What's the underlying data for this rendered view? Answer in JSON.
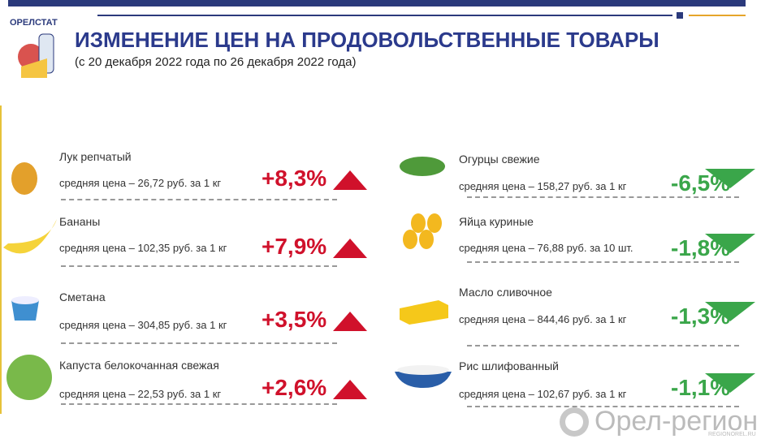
{
  "header": {
    "agency": "ОРЕЛСТАТ",
    "title": "ИЗМЕНЕНИЕ ЦЕН НА ПРОДОВОЛЬСТВЕННЫЕ ТОВАРЫ",
    "subtitle": "(с 20 декабря 2022 года по 26 декабря 2022 года)"
  },
  "increases": [
    {
      "name": "Лук репчатый",
      "price": "средняя цена – 26,72 руб. за 1 кг",
      "change": "+8,3%"
    },
    {
      "name": "Бананы",
      "price": "средняя цена – 102,35 руб. за 1 кг",
      "change": "+7,9%"
    },
    {
      "name": "Сметана",
      "price": "средняя цена – 304,85 руб. за 1 кг",
      "change": "+3,5%"
    },
    {
      "name": "Капуста белокочанная свежая",
      "price": "средняя цена – 22,53 руб. за 1 кг",
      "change": "+2,6%"
    }
  ],
  "decreases": [
    {
      "name": "Огурцы свежие",
      "price": "средняя цена – 158,27 руб. за 1 кг",
      "change": "-6,5%"
    },
    {
      "name": "Яйца куриные",
      "price": "средняя цена –  76,88 руб. за 10 шт.",
      "change": "-1,8%"
    },
    {
      "name": "Масло сливочное",
      "price": "средняя цена – 844,46 руб. за 1 кг",
      "change": "-1,3%"
    },
    {
      "name": "Рис шлифованный",
      "price": "средняя цена – 102,67 руб. за 1 кг",
      "change": "-1,1%"
    }
  ],
  "watermark": {
    "name": "Орел-регион",
    "site": "REGIONOREL.RU"
  }
}
